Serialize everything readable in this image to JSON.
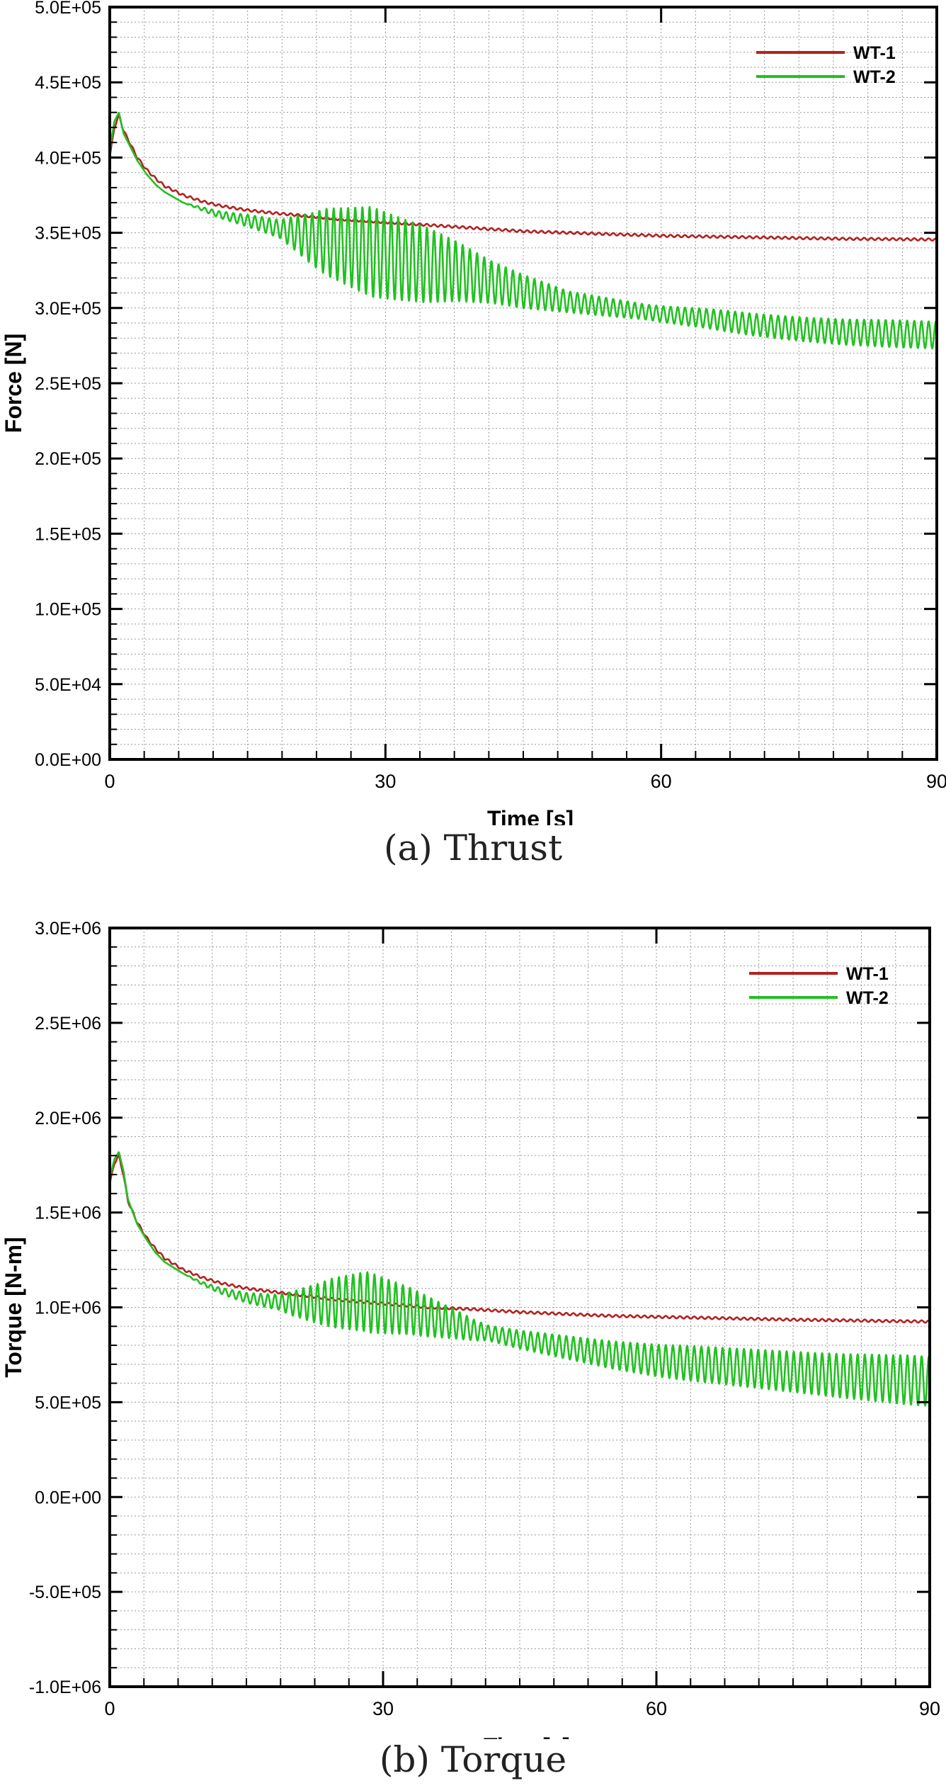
{
  "chart_data": [
    {
      "type": "line",
      "caption": "(a) Thrust",
      "xlabel": "Time [s]",
      "ylabel": "Force [N]",
      "xlim": [
        0,
        90
      ],
      "ylim": [
        0,
        500000
      ],
      "x_ticks": [
        0,
        30,
        60,
        90
      ],
      "x_tick_labels": [
        "0",
        "30",
        "60",
        "90"
      ],
      "y_ticks": [
        0,
        50000,
        100000,
        150000,
        200000,
        250000,
        300000,
        350000,
        400000,
        450000,
        500000
      ],
      "y_tick_labels": [
        "0.0E+00",
        "5.0E+04",
        "1.0E+05",
        "1.5E+05",
        "2.0E+05",
        "2.5E+05",
        "3.0E+05",
        "3.5E+05",
        "4.0E+05",
        "4.5E+05",
        "5.0E+05"
      ],
      "grid": true,
      "legend_position": "top-right",
      "series": [
        {
          "name": "WT-1",
          "color": "#b22222",
          "x": [
            0,
            0.5,
            1,
            1.5,
            2,
            3,
            4,
            5,
            6,
            8,
            10,
            12,
            15,
            18,
            20,
            25,
            30,
            35,
            40,
            45,
            50,
            55,
            60,
            65,
            70,
            75,
            80,
            85,
            90
          ],
          "y": [
            400000,
            420000,
            428000,
            418000,
            412000,
            400000,
            392000,
            386000,
            381000,
            375000,
            371000,
            368000,
            365000,
            363000,
            362000,
            359000,
            357000,
            355000,
            353000,
            351000,
            350000,
            349000,
            348000,
            347500,
            347000,
            346500,
            346000,
            345800,
            345500
          ]
        },
        {
          "name": "WT-2",
          "color": "#22c022",
          "x": [
            0,
            0.5,
            1,
            1.5,
            2,
            3,
            4,
            5,
            6,
            8,
            10,
            12,
            15,
            17,
            20,
            22,
            25,
            28,
            30,
            32,
            35,
            38,
            40,
            45,
            50,
            55,
            60,
            65,
            70,
            75,
            80,
            85,
            90
          ],
          "y": [
            405000,
            424000,
            430000,
            416000,
            410000,
            398000,
            389000,
            382000,
            377000,
            370000,
            366000,
            362000,
            358000,
            355000,
            350000,
            346000,
            342000,
            338000,
            335000,
            332000,
            328000,
            324000,
            320000,
            311000,
            304000,
            300000,
            296000,
            293000,
            289000,
            286000,
            284000,
            283000,
            282000
          ],
          "oscillation": [
            [
              0,
              16,
              0
            ],
            [
              17,
              20,
              6000
            ],
            [
              22,
              25,
              22000
            ],
            [
              27,
              30,
              30000
            ],
            [
              33,
              36,
              25000
            ],
            [
              40,
              43,
              14000
            ],
            [
              48,
              52,
              7000
            ],
            [
              57,
              60,
              5000
            ],
            [
              65,
              70,
              7000
            ],
            [
              80,
              90,
              9000
            ]
          ]
        }
      ]
    },
    {
      "type": "line",
      "caption": "(b) Torque",
      "xlabel": "Time [s]",
      "ylabel": "Torque [N-m]",
      "xlim": [
        0,
        90
      ],
      "ylim": [
        -1000000,
        3000000
      ],
      "x_ticks": [
        0,
        30,
        60,
        90
      ],
      "x_tick_labels": [
        "0",
        "30",
        "60",
        "90"
      ],
      "y_ticks": [
        -1000000,
        -500000,
        0,
        500000,
        1000000,
        1500000,
        2000000,
        2500000,
        3000000
      ],
      "y_tick_labels": [
        "-1.0E+06",
        "-5.0E+05",
        "0.0E+00",
        "5.0E+05",
        "1.0E+06",
        "1.5E+06",
        "2.0E+06",
        "2.5E+06",
        "3.0E+06"
      ],
      "grid": true,
      "legend_position": "top-right",
      "series": [
        {
          "name": "WT-1",
          "color": "#b22222",
          "x": [
            0,
            0.5,
            1,
            1.5,
            2,
            3,
            4,
            5,
            6,
            8,
            10,
            12,
            15,
            20,
            25,
            30,
            35,
            40,
            45,
            50,
            55,
            60,
            65,
            70,
            75,
            80,
            85,
            90
          ],
          "y": [
            1650000,
            1760000,
            1800000,
            1700000,
            1560000,
            1450000,
            1370000,
            1310000,
            1260000,
            1200000,
            1160000,
            1130000,
            1100000,
            1070000,
            1040000,
            1020000,
            1000000,
            990000,
            975000,
            965000,
            955000,
            950000,
            945000,
            940000,
            935000,
            932000,
            928000,
            925000
          ]
        },
        {
          "name": "WT-2",
          "color": "#22c022",
          "x": [
            0,
            0.5,
            1,
            1.5,
            2,
            3,
            4,
            5,
            6,
            8,
            10,
            12,
            15,
            18,
            20,
            23,
            25,
            28,
            30,
            33,
            35,
            38,
            40,
            45,
            50,
            55,
            60,
            65,
            70,
            75,
            80,
            85,
            90
          ],
          "y": [
            1680000,
            1780000,
            1820000,
            1720000,
            1570000,
            1440000,
            1360000,
            1290000,
            1240000,
            1180000,
            1130000,
            1090000,
            1050000,
            1030000,
            1020000,
            1020000,
            1025000,
            1030000,
            1010000,
            980000,
            950000,
            910000,
            880000,
            830000,
            790000,
            750000,
            720000,
            700000,
            680000,
            660000,
            640000,
            625000,
            610000
          ],
          "oscillation": [
            [
              0,
              16,
              0
            ],
            [
              17,
              20,
              40000
            ],
            [
              23,
              26,
              130000
            ],
            [
              27,
              30,
              160000
            ],
            [
              33,
              36,
              110000
            ],
            [
              40,
              43,
              40000
            ],
            [
              48,
              52,
              60000
            ],
            [
              60,
              65,
              90000
            ],
            [
              75,
              80,
              110000
            ],
            [
              85,
              90,
              130000
            ]
          ]
        }
      ]
    }
  ]
}
